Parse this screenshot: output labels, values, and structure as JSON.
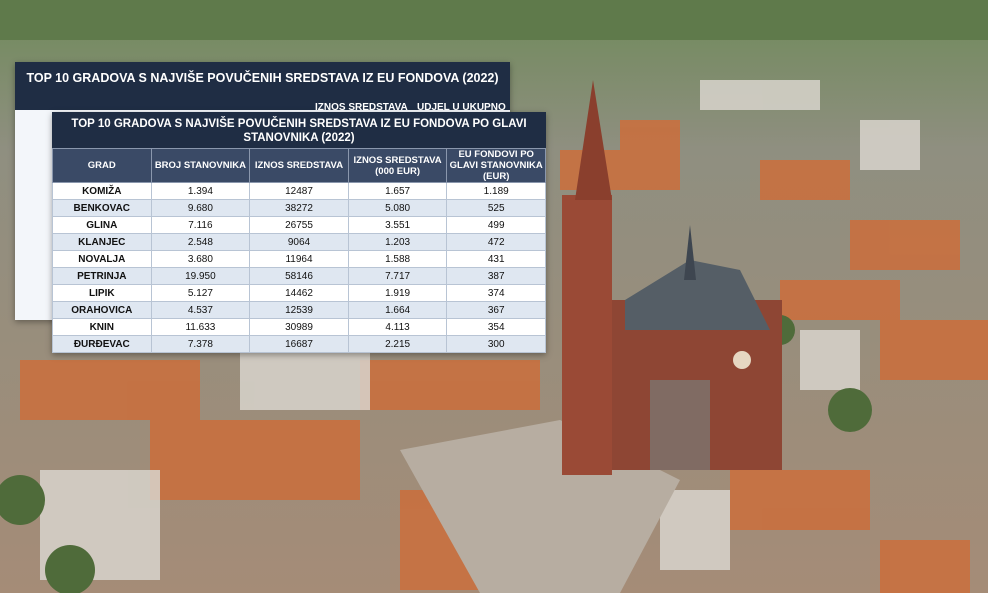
{
  "back_table": {
    "title": "TOP 10 GRADOVA S NAJVIŠE POVUČENIH SREDSTAVA IZ EU FONDOVA (2022)",
    "headers": [
      "IZNOS SREDSTAVA",
      "UDJEL U UKUPNO"
    ]
  },
  "front_table": {
    "title": "TOP 10 GRADOVA S NAJVIŠE POVUČENIH SREDSTAVA IZ EU FONDOVA PO GLAVI STANOVNIKA (2022)",
    "headers": [
      "GRAD",
      "BROJ STANOVNIKA",
      "IZNOS SREDSTAVA",
      "IZNOS SREDSTAVA (000 EUR)",
      "EU FONDOVI PO GLAVI STANOVNIKA (EUR)"
    ],
    "rows": [
      [
        "KOMIŽA",
        "1.394",
        "12487",
        "1.657",
        "1.189"
      ],
      [
        "BENKOVAC",
        "9.680",
        "38272",
        "5.080",
        "525"
      ],
      [
        "GLINA",
        "7.116",
        "26755",
        "3.551",
        "499"
      ],
      [
        "KLANJEC",
        "2.548",
        "9064",
        "1.203",
        "472"
      ],
      [
        "NOVALJA",
        "3.680",
        "11964",
        "1.588",
        "431"
      ],
      [
        "PETRINJA",
        "19.950",
        "58146",
        "7.717",
        "387"
      ],
      [
        "LIPIK",
        "5.127",
        "14462",
        "1.919",
        "374"
      ],
      [
        "ORAHOVICA",
        "4.537",
        "12539",
        "1.664",
        "367"
      ],
      [
        "KNIN",
        "11.633",
        "30989",
        "4.113",
        "354"
      ],
      [
        "ĐURĐEVAC",
        "7.378",
        "16687",
        "2.215",
        "300"
      ]
    ]
  }
}
